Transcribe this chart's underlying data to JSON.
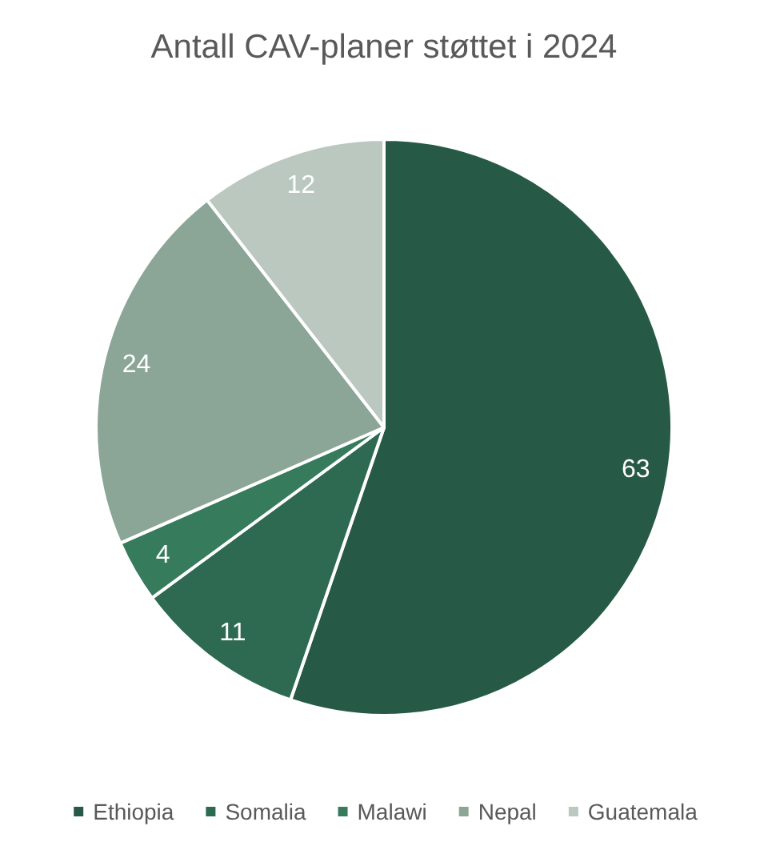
{
  "chart_data": {
    "type": "pie",
    "title": "Antall CAV-planer støttet i 2024",
    "categories": [
      "Ethiopia",
      "Somalia",
      "Malawi",
      "Nepal",
      "Guatemala"
    ],
    "values": [
      63,
      11,
      4,
      24,
      12
    ],
    "colors": [
      "#275a46",
      "#2e6a52",
      "#367b5c",
      "#8ba697",
      "#bac8c0"
    ],
    "data_labels": true,
    "legend": "bottom"
  }
}
